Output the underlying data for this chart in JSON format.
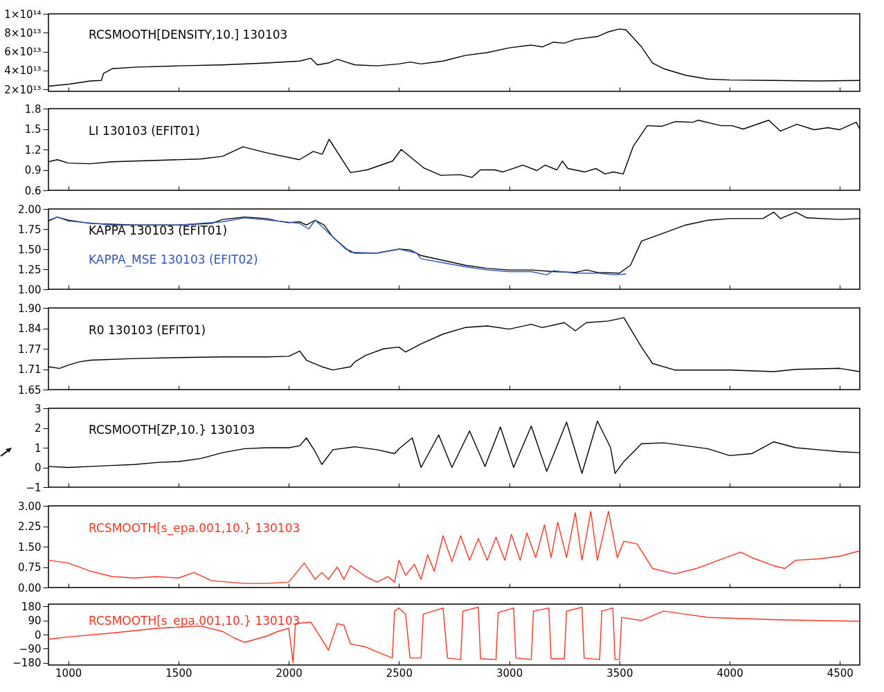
{
  "chart_data": [
    {
      "type": "line",
      "xlim": [
        910,
        4590
      ],
      "xticks": [
        1000,
        1500,
        2000,
        2500,
        3000,
        3500,
        4000,
        4500
      ],
      "ylim": [
        18000000000000.0,
        100000000000000.0
      ],
      "yticks": [
        {
          "value": 20000000000000.0,
          "label": "2×10¹³"
        },
        {
          "value": 40000000000000.0,
          "label": "4×10¹³"
        },
        {
          "value": 60000000000000.0,
          "label": "6×10¹³"
        },
        {
          "value": 80000000000000.0,
          "label": "8×10¹³"
        },
        {
          "value": 100000000000000.0,
          "label": "1×10¹⁴"
        }
      ],
      "tick_labels": "y",
      "series": [
        {
          "name": "RCSMOOTH[DENSITY,10.]  130103",
          "color": "#000000",
          "x": [
            910,
            1000,
            1100,
            1150,
            1160,
            1200,
            1300,
            1500,
            1700,
            1900,
            2050,
            2100,
            2130,
            2180,
            2220,
            2300,
            2400,
            2500,
            2550,
            2600,
            2700,
            2800,
            2900,
            3000,
            3100,
            3150,
            3200,
            3250,
            3300,
            3400,
            3450,
            3500,
            3530,
            3600,
            3650,
            3700,
            3800,
            3900,
            4000,
            4200,
            4400,
            4590
          ],
          "values": [
            23500000000000.0,
            25500000000000.0,
            29000000000000.0,
            29500000000000.0,
            37000000000000.0,
            42000000000000.0,
            43500000000000.0,
            45000000000000.0,
            46000000000000.0,
            48000000000000.0,
            50000000000000.0,
            53000000000000.0,
            46000000000000.0,
            48000000000000.0,
            52000000000000.0,
            46000000000000.0,
            45000000000000.0,
            47000000000000.0,
            49000000000000.0,
            47000000000000.0,
            50000000000000.0,
            56000000000000.0,
            59000000000000.0,
            64000000000000.0,
            67000000000000.0,
            65000000000000.0,
            70000000000000.0,
            69000000000000.0,
            73000000000000.0,
            76000000000000.0,
            81000000000000.0,
            84000000000000.0,
            83000000000000.0,
            65000000000000.0,
            48000000000000.0,
            42000000000000.0,
            35000000000000.0,
            31000000000000.0,
            30000000000000.0,
            29500000000000.0,
            29000000000000.0,
            29500000000000.0
          ]
        }
      ]
    },
    {
      "type": "line",
      "xlim": [
        910,
        4590
      ],
      "xticks": [
        1000,
        1500,
        2000,
        2500,
        3000,
        3500,
        4000,
        4500
      ],
      "ylim": [
        0.6,
        1.8
      ],
      "yticks": [
        0.6,
        0.9,
        1.2,
        1.5,
        1.8
      ],
      "tick_labels": "y",
      "series": [
        {
          "name": "LI  130103 (EFIT01)",
          "color": "#000000",
          "x": [
            910,
            950,
            1000,
            1100,
            1200,
            1400,
            1600,
            1700,
            1792,
            1900,
            2048,
            2111,
            2152,
            2183,
            2280,
            2355,
            2471,
            2510,
            2612,
            2690,
            2778,
            2831,
            2869,
            2934,
            2972,
            3062,
            3125,
            3163,
            3216,
            3241,
            3266,
            3344,
            3394,
            3435,
            3473,
            3517,
            3563,
            3626,
            3691,
            3754,
            3833,
            3858,
            3961,
            4011,
            4061,
            4177,
            4230,
            4305,
            4383,
            4446,
            4499,
            4574,
            4590
          ],
          "values": [
            1.02,
            1.05,
            1.0,
            0.99,
            1.02,
            1.04,
            1.06,
            1.1,
            1.24,
            1.15,
            1.05,
            1.17,
            1.13,
            1.35,
            0.86,
            0.9,
            1.03,
            1.2,
            0.93,
            0.82,
            0.83,
            0.79,
            0.9,
            0.9,
            0.87,
            0.97,
            0.89,
            0.97,
            0.9,
            1.03,
            0.92,
            0.87,
            0.92,
            0.84,
            0.87,
            0.84,
            1.25,
            1.55,
            1.54,
            1.61,
            1.6,
            1.63,
            1.55,
            1.55,
            1.5,
            1.63,
            1.47,
            1.57,
            1.49,
            1.52,
            1.49,
            1.6,
            1.5
          ]
        }
      ]
    },
    {
      "type": "line",
      "xlim": [
        910,
        4590
      ],
      "xticks": [
        1000,
        1500,
        2000,
        2500,
        3000,
        3500,
        4000,
        4500
      ],
      "ylim": [
        1.0,
        2.0
      ],
      "yticks": [
        {
          "value": 1,
          "label": "1.00"
        },
        {
          "value": 1.25,
          "label": "1.25"
        },
        {
          "value": 1.5,
          "label": "1.50"
        },
        {
          "value": 1.75,
          "label": "1.75"
        },
        {
          "value": 2,
          "label": "2.00"
        }
      ],
      "tick_labels": "y",
      "series": [
        {
          "name": "KAPPA   130103 (EFIT01)",
          "color": "#000000",
          "x": [
            910,
            950,
            1000,
            1100,
            1300,
            1500,
            1650,
            1700,
            1800,
            1900,
            1950,
            2000,
            2050,
            2080,
            2120,
            2160,
            2200,
            2260,
            2300,
            2400,
            2500,
            2550,
            2600,
            2700,
            2800,
            2900,
            3000,
            3100,
            3200,
            3300,
            3350,
            3400,
            3500,
            3550,
            3600,
            3700,
            3800,
            3900,
            4000,
            4150,
            4200,
            4230,
            4300,
            4350,
            4500,
            4590
          ],
          "values": [
            1.85,
            1.9,
            1.86,
            1.82,
            1.8,
            1.8,
            1.82,
            1.87,
            1.9,
            1.88,
            1.85,
            1.83,
            1.84,
            1.8,
            1.86,
            1.8,
            1.65,
            1.5,
            1.45,
            1.45,
            1.5,
            1.49,
            1.42,
            1.36,
            1.3,
            1.26,
            1.24,
            1.24,
            1.22,
            1.21,
            1.24,
            1.21,
            1.2,
            1.3,
            1.6,
            1.7,
            1.8,
            1.86,
            1.88,
            1.88,
            1.96,
            1.88,
            1.96,
            1.89,
            1.87,
            1.88
          ]
        },
        {
          "name": "KAPPA_MSE   130103 (EFIT02)",
          "color": "#3355bb",
          "x": [
            910,
            950,
            1000,
            1200,
            1500,
            1700,
            1800,
            1950,
            2050,
            2090,
            2120,
            2200,
            2280,
            2400,
            2500,
            2580,
            2600,
            2700,
            2800,
            2900,
            3000,
            3100,
            3170,
            3200,
            3300,
            3400,
            3480,
            3530
          ],
          "values": [
            1.86,
            1.9,
            1.85,
            1.8,
            1.8,
            1.84,
            1.89,
            1.85,
            1.82,
            1.75,
            1.86,
            1.65,
            1.46,
            1.45,
            1.5,
            1.45,
            1.38,
            1.33,
            1.28,
            1.24,
            1.22,
            1.22,
            1.18,
            1.23,
            1.2,
            1.2,
            1.18,
            1.19
          ]
        }
      ]
    },
    {
      "type": "line",
      "xlim": [
        910,
        4590
      ],
      "xticks": [
        1000,
        1500,
        2000,
        2500,
        3000,
        3500,
        4000,
        4500
      ],
      "ylim": [
        1.65,
        1.9
      ],
      "yticks": [
        {
          "value": 1.65,
          "label": "1.65"
        },
        {
          "value": 1.7125,
          "label": "1.71"
        },
        {
          "value": 1.775,
          "label": "1.77"
        },
        {
          "value": 1.8375,
          "label": "1.84"
        },
        {
          "value": 1.9,
          "label": "1.90"
        }
      ],
      "tick_labels": "y",
      "series": [
        {
          "name": "R0  130103 (EFIT01)",
          "color": "#000000",
          "x": [
            910,
            960,
            1000,
            1050,
            1100,
            1300,
            1500,
            1700,
            1900,
            2000,
            2050,
            2080,
            2150,
            2200,
            2280,
            2300,
            2350,
            2430,
            2500,
            2530,
            2600,
            2700,
            2800,
            2900,
            3000,
            3100,
            3150,
            3250,
            3300,
            3350,
            3450,
            3520,
            3600,
            3650,
            3750,
            4000,
            4200,
            4300,
            4500,
            4590
          ],
          "values": [
            1.72,
            1.715,
            1.725,
            1.735,
            1.74,
            1.745,
            1.748,
            1.75,
            1.75,
            1.752,
            1.768,
            1.74,
            1.72,
            1.71,
            1.72,
            1.735,
            1.755,
            1.775,
            1.78,
            1.765,
            1.79,
            1.82,
            1.84,
            1.845,
            1.835,
            1.85,
            1.84,
            1.855,
            1.83,
            1.855,
            1.86,
            1.87,
            1.78,
            1.73,
            1.71,
            1.71,
            1.705,
            1.712,
            1.715,
            1.705
          ]
        }
      ]
    },
    {
      "type": "line",
      "xlim": [
        910,
        4590
      ],
      "xticks": [
        1000,
        1500,
        2000,
        2500,
        3000,
        3500,
        4000,
        4500
      ],
      "ylim": [
        -1,
        3
      ],
      "yticks": [
        {
          "value": -1,
          "label": "−1"
        },
        0,
        1,
        2,
        3
      ],
      "tick_labels": "y",
      "series": [
        {
          "name": "RCSMOOTH[ZP,10.}  130103",
          "color": "#000000",
          "x": [
            910,
            1000,
            1100,
            1200,
            1300,
            1400,
            1500,
            1600,
            1700,
            1800,
            1900,
            2000,
            2050,
            2080,
            2120,
            2150,
            2200,
            2300,
            2400,
            2480,
            2500,
            2560,
            2600,
            2680,
            2740,
            2820,
            2890,
            2960,
            3020,
            3100,
            3170,
            3260,
            3330,
            3400,
            3460,
            3480,
            3520,
            3600,
            3700,
            3800,
            3900,
            4000,
            4100,
            4200,
            4300,
            4400,
            4500,
            4590
          ],
          "values": [
            0.05,
            0.0,
            0.05,
            0.1,
            0.15,
            0.25,
            0.3,
            0.45,
            0.75,
            0.95,
            1.0,
            1.0,
            1.1,
            1.5,
            0.8,
            0.15,
            0.9,
            1.05,
            0.9,
            0.7,
            0.95,
            1.5,
            0.0,
            1.65,
            0.0,
            1.85,
            0.05,
            2.05,
            0.0,
            2.1,
            -0.2,
            2.3,
            -0.3,
            2.35,
            1.0,
            -0.3,
            0.3,
            1.2,
            1.25,
            1.1,
            0.95,
            0.6,
            0.7,
            1.3,
            1.0,
            0.9,
            0.8,
            0.75
          ]
        }
      ]
    },
    {
      "type": "line",
      "xlim": [
        910,
        4590
      ],
      "xticks": [
        1000,
        1500,
        2000,
        2500,
        3000,
        3500,
        4000,
        4500
      ],
      "ylim": [
        0,
        3
      ],
      "yticks": [
        {
          "value": 0,
          "label": "0.00"
        },
        {
          "value": 0.75,
          "label": "0.75"
        },
        {
          "value": 1.5,
          "label": "1.50"
        },
        {
          "value": 2.25,
          "label": "2.25"
        },
        {
          "value": 3,
          "label": "3.00"
        }
      ],
      "tick_labels": "y",
      "series": [
        {
          "name": "RCSMOOTH[s_epa.001,10.}  130103",
          "color": "#ff3322",
          "x": [
            910,
            1000,
            1100,
            1200,
            1300,
            1400,
            1500,
            1570,
            1650,
            1800,
            1900,
            2000,
            2070,
            2120,
            2150,
            2180,
            2220,
            2250,
            2280,
            2350,
            2400,
            2450,
            2480,
            2500,
            2530,
            2570,
            2600,
            2630,
            2660,
            2700,
            2740,
            2780,
            2820,
            2860,
            2900,
            2940,
            2980,
            3010,
            3050,
            3080,
            3120,
            3160,
            3190,
            3220,
            3260,
            3300,
            3330,
            3370,
            3400,
            3450,
            3490,
            3520,
            3580,
            3650,
            3750,
            3850,
            3950,
            4050,
            4100,
            4200,
            4250,
            4300,
            4400,
            4500,
            4590
          ],
          "values": [
            1.0,
            0.9,
            0.6,
            0.4,
            0.35,
            0.4,
            0.35,
            0.55,
            0.25,
            0.15,
            0.15,
            0.2,
            0.9,
            0.3,
            0.55,
            0.3,
            0.75,
            0.3,
            0.8,
            0.4,
            0.2,
            0.4,
            0.2,
            1.0,
            0.45,
            0.85,
            0.3,
            1.2,
            0.6,
            1.9,
            0.95,
            1.9,
            1.0,
            1.8,
            1.0,
            1.85,
            1.0,
            1.95,
            1.0,
            2.0,
            1.1,
            2.3,
            1.1,
            2.4,
            1.1,
            2.75,
            1.0,
            2.8,
            1.0,
            2.8,
            1.1,
            1.7,
            1.6,
            0.7,
            0.5,
            0.7,
            1.0,
            1.3,
            1.1,
            0.8,
            0.7,
            1.0,
            1.05,
            1.15,
            1.35
          ]
        }
      ]
    },
    {
      "type": "line",
      "xlim": [
        910,
        4590
      ],
      "xticks": [
        1000,
        1500,
        2000,
        2500,
        3000,
        3500,
        4000,
        4500
      ],
      "ylim": [
        -195,
        195
      ],
      "yticks": [
        {
          "value": -180,
          "label": "−180"
        },
        {
          "value": -90,
          "label": "−90"
        },
        0,
        90,
        180
      ],
      "series": [
        {
          "name": "RCSMOOTH[s_epa.001,10.}  130103",
          "color": "#ff3322",
          "x": [
            910,
            1000,
            1200,
            1400,
            1600,
            1700,
            1750,
            1800,
            1850,
            1900,
            1950,
            2000,
            2020,
            2030,
            2100,
            2150,
            2180,
            2220,
            2250,
            2280,
            2350,
            2400,
            2470,
            2480,
            2500,
            2530,
            2550,
            2600,
            2610,
            2700,
            2720,
            2780,
            2790,
            2860,
            2870,
            2940,
            2950,
            3020,
            3030,
            3100,
            3110,
            3180,
            3190,
            3250,
            3260,
            3330,
            3340,
            3410,
            3420,
            3470,
            3480,
            3500,
            3510,
            3600,
            3700,
            3800,
            3900,
            4000,
            4200,
            4400,
            4590
          ],
          "values": [
            -30,
            -15,
            10,
            40,
            55,
            20,
            -20,
            -50,
            -30,
            -10,
            20,
            40,
            -180,
            70,
            80,
            -30,
            -100,
            70,
            60,
            -60,
            -80,
            -110,
            -150,
            150,
            170,
            130,
            -150,
            -150,
            130,
            170,
            -150,
            -160,
            150,
            175,
            -155,
            -160,
            140,
            170,
            -150,
            -160,
            150,
            170,
            -155,
            -155,
            150,
            175,
            -150,
            -160,
            150,
            170,
            -160,
            -160,
            110,
            90,
            150,
            130,
            110,
            105,
            95,
            90,
            85
          ]
        }
      ]
    }
  ]
}
